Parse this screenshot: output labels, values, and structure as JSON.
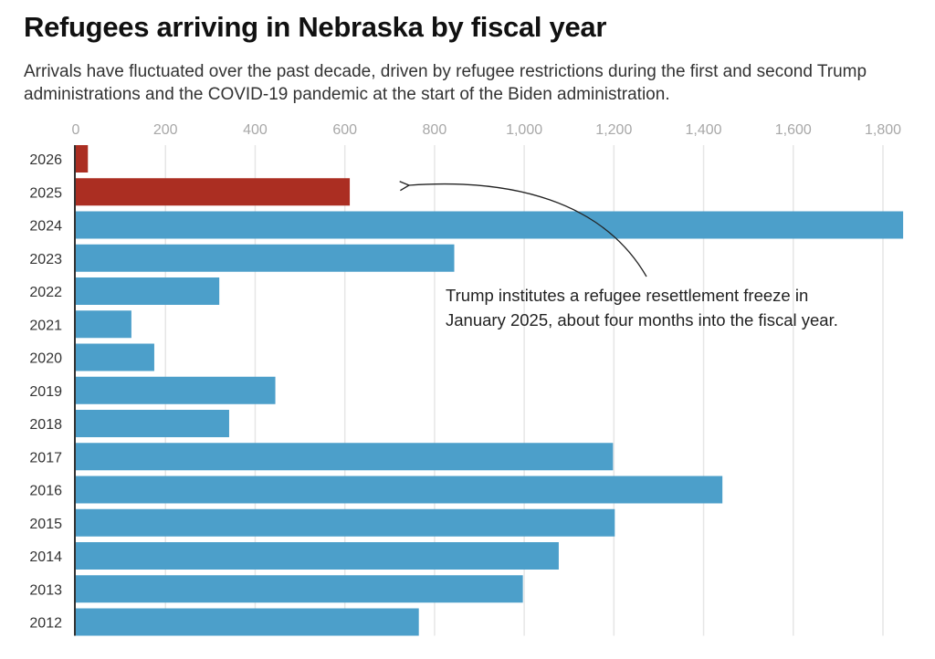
{
  "header": {
    "title": "Refugees arriving in Nebraska by fiscal year",
    "subtitle": "Arrivals have fluctuated over the past decade, driven by refugee restrictions during the first and second Trump administrations and the COVID-19 pandemic at the start of the Biden administration."
  },
  "colors": {
    "highlight": "#AB2E22",
    "default": "#4C9FCA",
    "grid": "#e6e6e6",
    "axis": "#333333"
  },
  "chart_data": {
    "type": "bar",
    "orientation": "horizontal",
    "title": "Refugees arriving in Nebraska by fiscal year",
    "xlabel": "",
    "ylabel": "",
    "xlim": [
      0,
      1850
    ],
    "x_ticks": [
      0,
      200,
      400,
      600,
      800,
      1000,
      1200,
      1400,
      1600,
      1800
    ],
    "x_tick_labels": [
      "0",
      "200",
      "400",
      "600",
      "800",
      "1,000",
      "1,200",
      "1,400",
      "1,600",
      "1,800"
    ],
    "x_axis_position": "top",
    "grid": true,
    "categories": [
      "2026",
      "2025",
      "2024",
      "2023",
      "2022",
      "2021",
      "2020",
      "2019",
      "2018",
      "2017",
      "2016",
      "2015",
      "2014",
      "2013",
      "2012"
    ],
    "values": [
      27,
      611,
      1845,
      844,
      320,
      124,
      175,
      445,
      342,
      1198,
      1442,
      1202,
      1077,
      997,
      765
    ],
    "highlighted": [
      "2026",
      "2025"
    ],
    "annotation": {
      "lines": [
        "Trump institutes a refugee resettlement freeze in",
        "January 2025, about four months into the fiscal year."
      ],
      "points_to": "2025"
    }
  }
}
